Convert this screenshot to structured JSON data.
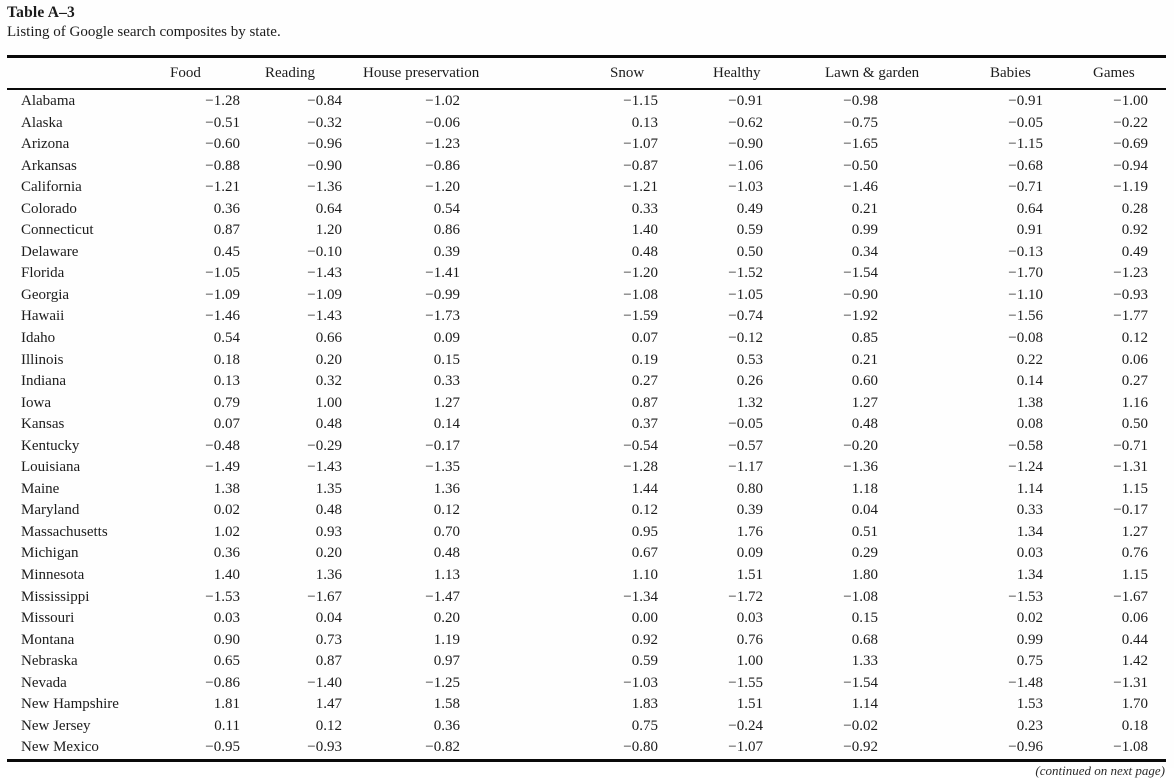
{
  "paper": {
    "table_label": "Table A–3",
    "table_caption": "Listing of Google search composites by state.",
    "continued_note": "(continued on next page)"
  },
  "table": {
    "columns": [
      "",
      "Food",
      "Reading",
      "House preservation",
      "Snow",
      "Healthy",
      "Lawn & garden",
      "Babies",
      "Games"
    ],
    "rows": [
      [
        "Alabama",
        "−1.28",
        "−0.84",
        "−1.02",
        "−1.15",
        "−0.91",
        "−0.98",
        "−0.91",
        "−1.00"
      ],
      [
        "Alaska",
        "−0.51",
        "−0.32",
        "−0.06",
        "0.13",
        "−0.62",
        "−0.75",
        "−0.05",
        "−0.22"
      ],
      [
        "Arizona",
        "−0.60",
        "−0.96",
        "−1.23",
        "−1.07",
        "−0.90",
        "−1.65",
        "−1.15",
        "−0.69"
      ],
      [
        "Arkansas",
        "−0.88",
        "−0.90",
        "−0.86",
        "−0.87",
        "−1.06",
        "−0.50",
        "−0.68",
        "−0.94"
      ],
      [
        "California",
        "−1.21",
        "−1.36",
        "−1.20",
        "−1.21",
        "−1.03",
        "−1.46",
        "−0.71",
        "−1.19"
      ],
      [
        "Colorado",
        "0.36",
        "0.64",
        "0.54",
        "0.33",
        "0.49",
        "0.21",
        "0.64",
        "0.28"
      ],
      [
        "Connecticut",
        "0.87",
        "1.20",
        "0.86",
        "1.40",
        "0.59",
        "0.99",
        "0.91",
        "0.92"
      ],
      [
        "Delaware",
        "0.45",
        "−0.10",
        "0.39",
        "0.48",
        "0.50",
        "0.34",
        "−0.13",
        "0.49"
      ],
      [
        "Florida",
        "−1.05",
        "−1.43",
        "−1.41",
        "−1.20",
        "−1.52",
        "−1.54",
        "−1.70",
        "−1.23"
      ],
      [
        "Georgia",
        "−1.09",
        "−1.09",
        "−0.99",
        "−1.08",
        "−1.05",
        "−0.90",
        "−1.10",
        "−0.93"
      ],
      [
        "Hawaii",
        "−1.46",
        "−1.43",
        "−1.73",
        "−1.59",
        "−0.74",
        "−1.92",
        "−1.56",
        "−1.77"
      ],
      [
        "Idaho",
        "0.54",
        "0.66",
        "0.09",
        "0.07",
        "−0.12",
        "0.85",
        "−0.08",
        "0.12"
      ],
      [
        "Illinois",
        "0.18",
        "0.20",
        "0.15",
        "0.19",
        "0.53",
        "0.21",
        "0.22",
        "0.06"
      ],
      [
        "Indiana",
        "0.13",
        "0.32",
        "0.33",
        "0.27",
        "0.26",
        "0.60",
        "0.14",
        "0.27"
      ],
      [
        "Iowa",
        "0.79",
        "1.00",
        "1.27",
        "0.87",
        "1.32",
        "1.27",
        "1.38",
        "1.16"
      ],
      [
        "Kansas",
        "0.07",
        "0.48",
        "0.14",
        "0.37",
        "−0.05",
        "0.48",
        "0.08",
        "0.50"
      ],
      [
        "Kentucky",
        "−0.48",
        "−0.29",
        "−0.17",
        "−0.54",
        "−0.57",
        "−0.20",
        "−0.58",
        "−0.71"
      ],
      [
        "Louisiana",
        "−1.49",
        "−1.43",
        "−1.35",
        "−1.28",
        "−1.17",
        "−1.36",
        "−1.24",
        "−1.31"
      ],
      [
        "Maine",
        "1.38",
        "1.35",
        "1.36",
        "1.44",
        "0.80",
        "1.18",
        "1.14",
        "1.15"
      ],
      [
        "Maryland",
        "0.02",
        "0.48",
        "0.12",
        "0.12",
        "0.39",
        "0.04",
        "0.33",
        "−0.17"
      ],
      [
        "Massachusetts",
        "1.02",
        "0.93",
        "0.70",
        "0.95",
        "1.76",
        "0.51",
        "1.34",
        "1.27"
      ],
      [
        "Michigan",
        "0.36",
        "0.20",
        "0.48",
        "0.67",
        "0.09",
        "0.29",
        "0.03",
        "0.76"
      ],
      [
        "Minnesota",
        "1.40",
        "1.36",
        "1.13",
        "1.10",
        "1.51",
        "1.80",
        "1.34",
        "1.15"
      ],
      [
        "Mississippi",
        "−1.53",
        "−1.67",
        "−1.47",
        "−1.34",
        "−1.72",
        "−1.08",
        "−1.53",
        "−1.67"
      ],
      [
        "Missouri",
        "0.03",
        "0.04",
        "0.20",
        "0.00",
        "0.03",
        "0.15",
        "0.02",
        "0.06"
      ],
      [
        "Montana",
        "0.90",
        "0.73",
        "1.19",
        "0.92",
        "0.76",
        "0.68",
        "0.99",
        "0.44"
      ],
      [
        "Nebraska",
        "0.65",
        "0.87",
        "0.97",
        "0.59",
        "1.00",
        "1.33",
        "0.75",
        "1.42"
      ],
      [
        "Nevada",
        "−0.86",
        "−1.40",
        "−1.25",
        "−1.03",
        "−1.55",
        "−1.54",
        "−1.48",
        "−1.31"
      ],
      [
        "New Hampshire",
        "1.81",
        "1.47",
        "1.58",
        "1.83",
        "1.51",
        "1.14",
        "1.53",
        "1.70"
      ],
      [
        "New Jersey",
        "0.11",
        "0.12",
        "0.36",
        "0.75",
        "−0.24",
        "−0.02",
        "0.23",
        "0.18"
      ],
      [
        "New Mexico",
        "−0.95",
        "−0.93",
        "−0.82",
        "−0.80",
        "−1.07",
        "−0.92",
        "−0.96",
        "−1.08"
      ]
    ]
  }
}
